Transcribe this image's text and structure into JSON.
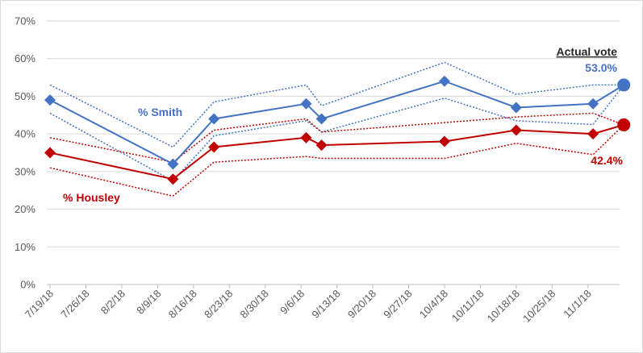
{
  "chart_data": {
    "type": "line",
    "x_ticks": [
      "7/19/18",
      "7/26/18",
      "8/2/18",
      "8/9/18",
      "8/16/18",
      "8/23/18",
      "8/30/18",
      "9/6/18",
      "9/13/18",
      "9/20/18",
      "9/27/18",
      "10/4/18",
      "10/11/18",
      "10/18/18",
      "10/25/18",
      "11/1/18"
    ],
    "y_ticks": [
      "0%",
      "10%",
      "20%",
      "30%",
      "40%",
      "50%",
      "60%",
      "70%"
    ],
    "ylim": [
      0,
      70
    ],
    "xlim": [
      "2018-07-19",
      "2018-11-07"
    ],
    "grid": "horizontal",
    "series": [
      {
        "name": "% Smith",
        "color": "#4472c4",
        "points": [
          {
            "x": "2018-07-19",
            "y": 49
          },
          {
            "x": "2018-08-12",
            "y": 32
          },
          {
            "x": "2018-08-20",
            "y": 44
          },
          {
            "x": "2018-09-07",
            "y": 48
          },
          {
            "x": "2018-09-10",
            "y": 44
          },
          {
            "x": "2018-10-04",
            "y": 54
          },
          {
            "x": "2018-10-18",
            "y": 47
          },
          {
            "x": "2018-11-02",
            "y": 48
          }
        ],
        "upper": [
          53,
          36.5,
          48.5,
          53,
          47.5,
          59,
          50.5,
          53
        ],
        "lower": [
          45.5,
          27.5,
          39.5,
          43.5,
          40.5,
          49.5,
          43.5,
          42.5
        ]
      },
      {
        "name": "% Housley",
        "color": "#c00000",
        "points": [
          {
            "x": "2018-07-19",
            "y": 35
          },
          {
            "x": "2018-08-12",
            "y": 28
          },
          {
            "x": "2018-08-20",
            "y": 36.5
          },
          {
            "x": "2018-09-07",
            "y": 39
          },
          {
            "x": "2018-09-10",
            "y": 37
          },
          {
            "x": "2018-10-04",
            "y": 38
          },
          {
            "x": "2018-10-18",
            "y": 41
          },
          {
            "x": "2018-11-02",
            "y": 40
          }
        ],
        "upper": [
          39,
          32.5,
          41,
          44,
          40.5,
          43,
          44.5,
          45.5
        ],
        "lower": [
          31,
          23.5,
          32.5,
          34,
          33.5,
          33.5,
          37.5,
          34.5
        ]
      }
    ],
    "actual_vote": {
      "x": "2018-11-08",
      "smith": 53.0,
      "housley": 42.4,
      "smith_label": "53.0%",
      "housley_label": "42.4%",
      "title": "Actual vote"
    },
    "annotations": {
      "smith_label": "% Smith",
      "housley_label": "% Housley"
    }
  }
}
